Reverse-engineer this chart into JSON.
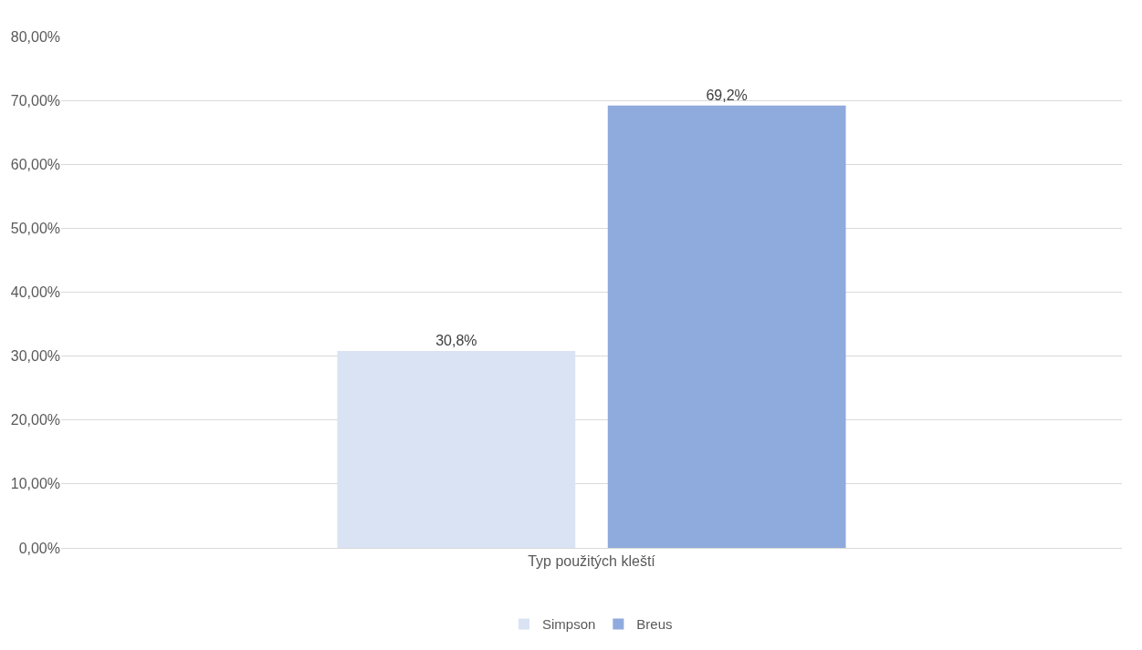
{
  "chart_data": {
    "type": "bar",
    "categories": [
      "Typ použitých kleští"
    ],
    "series": [
      {
        "name": "Simpson",
        "color": "#dae3f3",
        "values": [
          30.8
        ],
        "value_labels": [
          "30,8%"
        ]
      },
      {
        "name": "Breus",
        "color": "#8faadc",
        "values": [
          69.2
        ],
        "value_labels": [
          "69,2%"
        ]
      }
    ],
    "ylim": [
      0,
      80
    ],
    "yticks": [
      {
        "value": 0,
        "label": "0,00%"
      },
      {
        "value": 10,
        "label": "10,00%"
      },
      {
        "value": 20,
        "label": "20,00%"
      },
      {
        "value": 30,
        "label": "30,00%"
      },
      {
        "value": 40,
        "label": "40,00%"
      },
      {
        "value": 50,
        "label": "50,00%"
      },
      {
        "value": 60,
        "label": "60,00%"
      },
      {
        "value": 70,
        "label": "70,00%"
      },
      {
        "value": 80,
        "label": "80,00%"
      }
    ],
    "grid": "y",
    "legend": "bottom"
  }
}
